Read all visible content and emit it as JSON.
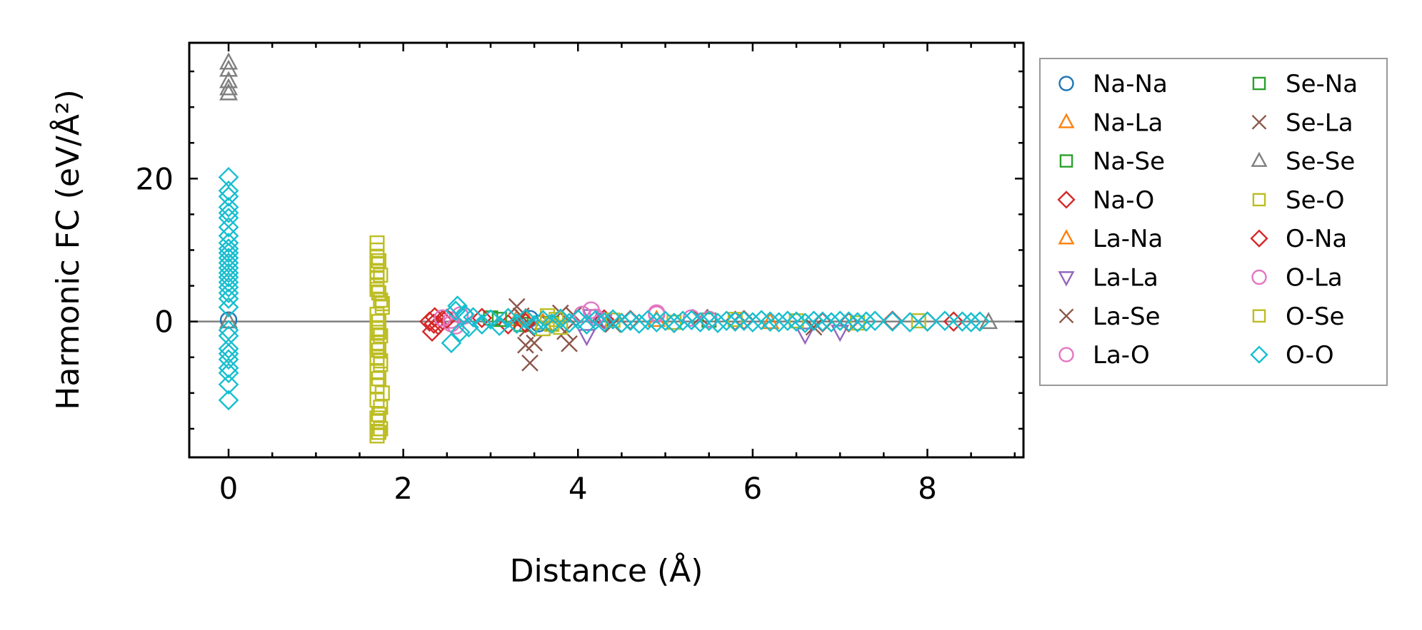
{
  "chart_data": {
    "type": "scatter",
    "xlabel": "Distance (Å)",
    "ylabel": "Harmonic FC (eV/Å²)",
    "xlim": [
      -0.45,
      9.1
    ],
    "ylim": [
      -19,
      39
    ],
    "x_ticks": [
      0,
      2,
      4,
      6,
      8
    ],
    "x_tick_labels": [
      "0",
      "2",
      "4",
      "6",
      "8"
    ],
    "y_ticks": [
      0,
      20
    ],
    "y_tick_labels": [
      "0",
      "20"
    ],
    "zero_line": true,
    "grid": false,
    "legend_position": "outside-right",
    "legend_columns": 2,
    "series": [
      {
        "name": "Na-Na",
        "marker": "circle",
        "color": "#1f77b4",
        "x": [
          0,
          3.45,
          3.55
        ],
        "y": [
          0.2,
          0.4,
          -0.3
        ]
      },
      {
        "name": "Na-La",
        "marker": "triangle",
        "color": "#ff7f0e",
        "x": [
          3.3,
          3.6
        ],
        "y": [
          0.3,
          -0.2
        ]
      },
      {
        "name": "Na-Se",
        "marker": "square",
        "color": "#2ca02c",
        "x": [
          3.0,
          3.35
        ],
        "y": [
          0.5,
          -0.4
        ]
      },
      {
        "name": "Na-O",
        "marker": "diamond",
        "color": "#d62728",
        "x": [
          2.3,
          2.33,
          2.36,
          2.4,
          2.45,
          2.9,
          3.2,
          4.3,
          5.1,
          5.9,
          6.8,
          7.6,
          8.3
        ],
        "y": [
          0,
          -1.4,
          0.6,
          -0.5,
          0.2,
          0.5,
          -0.4,
          0.3,
          -0.2,
          0.2,
          -0.1,
          0.1,
          0
        ]
      },
      {
        "name": "La-Na",
        "marker": "triangle",
        "color": "#ff7f0e",
        "x": [
          3.4,
          4.9,
          6.2
        ],
        "y": [
          0.5,
          0.2,
          -0.1
        ]
      },
      {
        "name": "La-La",
        "marker": "triangle-down",
        "color": "#9467bd",
        "x": [
          4.1,
          4.15,
          4.3,
          6.6,
          7.0
        ],
        "y": [
          -2.0,
          0.8,
          0.3,
          -1.8,
          -1.4
        ]
      },
      {
        "name": "La-Se",
        "marker": "x",
        "color": "#8c564b",
        "x": [
          3.3,
          3.4,
          3.45,
          3.5,
          3.8,
          3.85,
          3.9,
          3.95,
          5.4,
          6.7
        ],
        "y": [
          2.1,
          -3.3,
          -5.8,
          -3.0,
          1.2,
          -1.4,
          -3.1,
          0.9,
          0.6,
          -0.8
        ]
      },
      {
        "name": "La-O",
        "marker": "circle",
        "color": "#e377c2",
        "x": [
          2.55,
          2.6,
          2.65,
          4.05,
          4.15,
          4.9,
          5.3
        ],
        "y": [
          0.2,
          -0.6,
          0.9,
          1.0,
          1.6,
          1.2,
          0.5
        ]
      },
      {
        "name": "Se-Na",
        "marker": "square",
        "color": "#2ca02c",
        "x": [
          3.1,
          3.7,
          5.5
        ],
        "y": [
          0.3,
          -0.3,
          0.2
        ]
      },
      {
        "name": "Se-La",
        "marker": "x",
        "color": "#8c564b",
        "x": [
          3.35,
          3.42,
          3.9,
          4.4
        ],
        "y": [
          0.8,
          -1.0,
          0.4,
          -0.4
        ]
      },
      {
        "name": "Se-Se",
        "marker": "triangle",
        "color": "#7f7f7f",
        "x": [
          0,
          0,
          0,
          0,
          0,
          0,
          8.7
        ],
        "y": [
          36.2,
          35.2,
          33.6,
          32.6,
          31.9,
          0,
          -0.1
        ]
      },
      {
        "name": "Se-O",
        "marker": "square",
        "color": "#bcbd22",
        "x": [
          1.7,
          1.7,
          1.7,
          1.7,
          1.7,
          1.7,
          1.7,
          1.72,
          1.74,
          1.76,
          1.7,
          1.72,
          1.7,
          1.74,
          1.7,
          1.72,
          1.7,
          1.74,
          1.7,
          1.72,
          1.7,
          1.76,
          1.7,
          1.74,
          1.72,
          1.7,
          1.74,
          1.7,
          1.72,
          1.74,
          1.7,
          1.76,
          1.72,
          1.7,
          1.74,
          1.7,
          1.72
        ],
        "y": [
          11,
          10,
          9,
          8,
          7,
          6,
          5,
          4,
          3,
          2,
          1,
          0,
          -1,
          -2,
          -3,
          -4,
          -5,
          -6,
          -7,
          -8,
          -9,
          -10,
          -11,
          -12,
          -13,
          -14,
          -15,
          -16,
          8.5,
          6.5,
          4.5,
          2.5,
          -1.5,
          -3.5,
          -5.5,
          -13.5,
          -15.5
        ]
      },
      {
        "name": "O-Na",
        "marker": "diamond",
        "color": "#d62728",
        "x": [
          2.35,
          2.5,
          3.4,
          4.6,
          5.8,
          7.1,
          8.0
        ],
        "y": [
          -0.3,
          0.4,
          -0.2,
          0.2,
          0.1,
          -0.1,
          0
        ]
      },
      {
        "name": "O-La",
        "marker": "circle",
        "color": "#e377c2",
        "x": [
          2.45,
          2.55,
          2.7,
          4.2,
          4.9,
          5.5
        ],
        "y": [
          0.5,
          -0.3,
          0.8,
          0.6,
          1.0,
          0.3
        ]
      },
      {
        "name": "O-Se",
        "marker": "square",
        "color": "#bcbd22",
        "x": [
          3.6,
          3.65,
          3.7,
          3.75,
          3.8,
          4.4,
          5.1,
          5.8,
          6.5,
          7.2,
          7.9
        ],
        "y": [
          -1.0,
          0.8,
          -0.4,
          0.3,
          -0.8,
          0.2,
          -0.1,
          0.3,
          0.1,
          -0.2,
          0.1
        ]
      },
      {
        "name": "O-O",
        "marker": "diamond",
        "color": "#17becf",
        "x": [
          0,
          0,
          0,
          0,
          0,
          0,
          0,
          0,
          0,
          0,
          0,
          0,
          0,
          0,
          0,
          0,
          0,
          0,
          0,
          0,
          0,
          0,
          0,
          0,
          0,
          0,
          0,
          0,
          0,
          0,
          2.55,
          2.6,
          2.62,
          2.65,
          2.7,
          2.75,
          2.8,
          2.9,
          3.0,
          3.1,
          3.2,
          3.3,
          3.4,
          3.5,
          3.6,
          3.7,
          3.8,
          3.9,
          4.0,
          4.1,
          4.2,
          4.3,
          4.4,
          4.5,
          4.6,
          4.7,
          4.8,
          4.9,
          5.0,
          5.1,
          5.2,
          5.3,
          5.4,
          5.5,
          5.6,
          5.7,
          5.8,
          5.9,
          6.0,
          6.1,
          6.2,
          6.3,
          6.4,
          6.5,
          6.6,
          6.7,
          6.8,
          6.9,
          7.0,
          7.1,
          7.2,
          7.3,
          7.4,
          7.6,
          7.8,
          8.0,
          8.2,
          8.4,
          8.5,
          8.6
        ],
        "y": [
          20.2,
          18.3,
          17.5,
          16.0,
          15.2,
          14.5,
          13.2,
          12.0,
          11.0,
          10.2,
          9.6,
          8.9,
          8.2,
          7.5,
          6.8,
          6.2,
          5.5,
          4.8,
          4.0,
          3.2,
          2.0,
          -1.2,
          -2.0,
          -3.8,
          -4.5,
          -5.3,
          -6.5,
          -7.2,
          -8.8,
          -11.0,
          -3.0,
          1.5,
          2.2,
          -1.5,
          1.0,
          -0.8,
          0.6,
          -0.4,
          0.3,
          -0.6,
          0.5,
          -0.3,
          0.4,
          -0.5,
          0.2,
          -0.3,
          0.4,
          -0.2,
          0.3,
          -0.4,
          0.2,
          -0.1,
          0.3,
          -0.2,
          0.1,
          -0.3,
          0.2,
          -0.1,
          0.1,
          -0.2,
          0.1,
          0.2,
          -0.1,
          0.1,
          -0.2,
          0.1,
          0,
          0.1,
          -0.1,
          0.2,
          0,
          -0.1,
          0.1,
          0,
          -0.2,
          0.1,
          0,
          -0.1,
          0.1,
          0,
          -0.1,
          0,
          0.1,
          0,
          -0.1,
          0,
          0.1,
          0,
          -0.1,
          0
        ]
      }
    ]
  }
}
